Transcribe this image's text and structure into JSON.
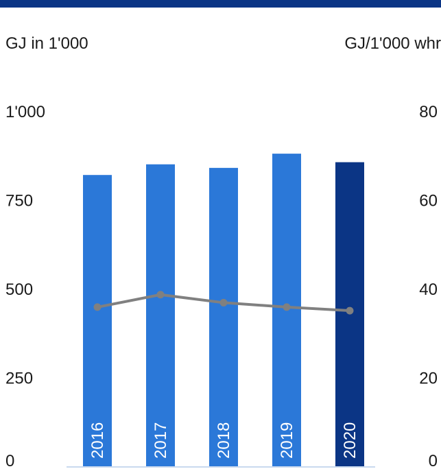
{
  "colors": {
    "top_rule": "#0b3585",
    "bar": "#2b78d8",
    "bar_highlight": "#0b3585",
    "line": "#808080",
    "baseline": "#c9d9ee"
  },
  "chart_data": {
    "type": "bar",
    "categories": [
      "2016",
      "2017",
      "2018",
      "2019",
      "2020"
    ],
    "highlight_category": "2020",
    "series": [
      {
        "type": "bar",
        "axis": "left",
        "values": [
          822,
          852,
          842,
          882,
          858
        ]
      },
      {
        "type": "line",
        "axis": "right",
        "values": [
          36.0,
          38.8,
          37.0,
          36.0,
          35.2
        ]
      }
    ],
    "left_axis": {
      "unit_label": "GJ in 1'000",
      "ylim": [
        0,
        1000
      ],
      "ticks": [
        0,
        250,
        500,
        750,
        1000
      ],
      "tick_labels": [
        "0",
        "250",
        "500",
        "750",
        "1'000"
      ]
    },
    "right_axis": {
      "unit_label": "GJ/1'000 whr",
      "ylim": [
        0,
        80
      ],
      "ticks": [
        0,
        20,
        40,
        60,
        80
      ],
      "tick_labels": [
        "0",
        "20",
        "40",
        "60",
        "80"
      ]
    },
    "grid": false,
    "legend": "none"
  }
}
